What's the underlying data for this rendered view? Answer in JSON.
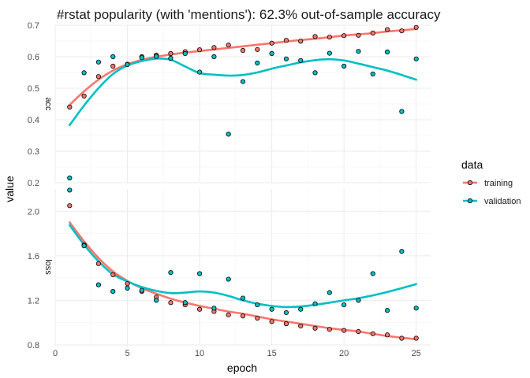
{
  "chart_data": {
    "type": "scatter",
    "title": "#rstat popularity (with 'mentions'): 62.3% out-of-sample accuracy",
    "xlabel": "epoch",
    "ylabel": "value",
    "x_ticks": [
      "0",
      "5",
      "10",
      "15",
      "20",
      "25"
    ],
    "xlim": [
      0,
      26
    ],
    "grid": true,
    "legend": {
      "title": "data",
      "position": "right",
      "entries": [
        "training",
        "validation"
      ]
    },
    "colors": {
      "training": "#f8766d",
      "validation": "#00bfc4"
    },
    "x": [
      1,
      2,
      3,
      4,
      5,
      6,
      7,
      8,
      9,
      10,
      11,
      12,
      13,
      14,
      15,
      16,
      17,
      18,
      19,
      20,
      21,
      22,
      23,
      24,
      25
    ],
    "panels": [
      {
        "strip": "acc",
        "ylim": [
          0.2,
          0.7
        ],
        "y_ticks": [
          "0.2",
          "0.3",
          "0.4",
          "0.5",
          "0.6",
          "0.7"
        ],
        "series": [
          {
            "name": "training",
            "values": [
              0.44,
              0.475,
              0.537,
              0.57,
              0.576,
              0.6,
              0.605,
              0.61,
              0.616,
              0.622,
              0.629,
              0.637,
              0.62,
              0.623,
              0.643,
              0.652,
              0.649,
              0.664,
              0.662,
              0.667,
              0.668,
              0.675,
              0.686,
              0.682,
              0.693
            ],
            "smooth": [
              0.447,
              0.49,
              0.527,
              0.556,
              0.576,
              0.59,
              0.6,
              0.607,
              0.613,
              0.618,
              0.623,
              0.628,
              0.633,
              0.638,
              0.643,
              0.648,
              0.653,
              0.657,
              0.662,
              0.667,
              0.671,
              0.675,
              0.68,
              0.684,
              0.688
            ]
          },
          {
            "name": "validation",
            "values": [
              0.215,
              0.549,
              0.583,
              0.6,
              0.575,
              0.597,
              0.601,
              0.595,
              0.61,
              0.551,
              0.6,
              0.354,
              0.521,
              0.58,
              0.61,
              0.593,
              0.588,
              0.549,
              0.611,
              0.57,
              0.617,
              0.545,
              0.615,
              0.426,
              0.593
            ],
            "smooth": [
              0.383,
              0.445,
              0.5,
              0.545,
              0.572,
              0.586,
              0.594,
              0.59,
              0.569,
              0.548,
              0.543,
              0.54,
              0.542,
              0.55,
              0.562,
              0.572,
              0.582,
              0.589,
              0.592,
              0.588,
              0.578,
              0.567,
              0.556,
              0.542,
              0.527
            ]
          }
        ]
      },
      {
        "strip": "loss",
        "ylim": [
          0.8,
          2.2
        ],
        "y_ticks": [
          "0.8",
          "1.2",
          "1.6",
          "2.0"
        ],
        "series": [
          {
            "name": "training",
            "values": [
              2.05,
              1.7,
              1.53,
              1.43,
              1.35,
              1.28,
              1.23,
              1.18,
              1.16,
              1.12,
              1.1,
              1.07,
              1.06,
              1.04,
              1.01,
              0.99,
              0.97,
              0.95,
              0.94,
              0.93,
              0.92,
              0.9,
              0.89,
              0.86,
              0.86
            ],
            "smooth": [
              1.9,
              1.73,
              1.58,
              1.46,
              1.375,
              1.31,
              1.26,
              1.215,
              1.18,
              1.15,
              1.125,
              1.1,
              1.08,
              1.055,
              1.03,
              1.01,
              0.99,
              0.97,
              0.95,
              0.935,
              0.92,
              0.9,
              0.88,
              0.865,
              0.85
            ]
          },
          {
            "name": "validation",
            "values": [
              2.19,
              1.69,
              1.34,
              1.28,
              1.31,
              1.29,
              1.2,
              1.45,
              1.18,
              1.44,
              1.13,
              1.39,
              1.22,
              1.16,
              1.12,
              1.09,
              1.12,
              1.17,
              1.27,
              1.16,
              1.2,
              1.44,
              1.11,
              1.64,
              1.13
            ]
          }
        ],
        "validation_smooth": [
          1.875,
          1.7,
          1.55,
          1.435,
          1.37,
          1.32,
          1.285,
          1.265,
          1.27,
          1.28,
          1.27,
          1.24,
          1.2,
          1.17,
          1.15,
          1.14,
          1.145,
          1.16,
          1.18,
          1.2,
          1.22,
          1.245,
          1.275,
          1.31,
          1.345
        ]
      }
    ]
  }
}
